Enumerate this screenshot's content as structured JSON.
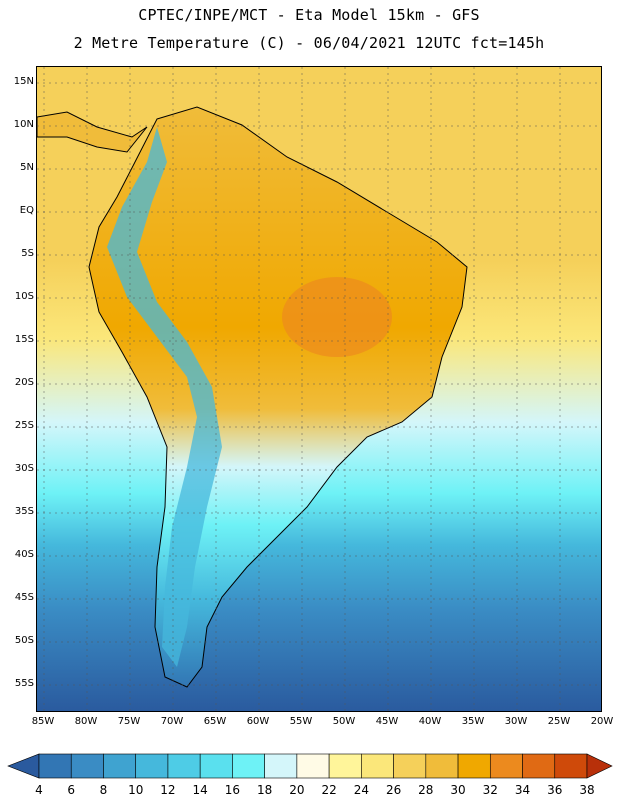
{
  "header": {
    "line1": "CPTEC/INPE/MCT -  Eta Model 15km - GFS",
    "line2": "2 Metre Temperature (C) - 06/04/2021 12UTC fct=145h"
  },
  "map": {
    "lat_labels": [
      "15N",
      "10N",
      "5N",
      "EQ",
      "5S",
      "10S",
      "15S",
      "20S",
      "25S",
      "30S",
      "35S",
      "40S",
      "45S",
      "50S",
      "55S"
    ],
    "lon_labels": [
      "85W",
      "80W",
      "75W",
      "70W",
      "65W",
      "60W",
      "55W",
      "50W",
      "45W",
      "40W",
      "35W",
      "30W",
      "25W",
      "20W"
    ]
  },
  "legend": {
    "labels": [
      "4",
      "6",
      "8",
      "10",
      "12",
      "14",
      "16",
      "18",
      "20",
      "22",
      "24",
      "26",
      "28",
      "30",
      "32",
      "34",
      "36",
      "38"
    ],
    "colors": [
      "#2a5a9e",
      "#3276b4",
      "#3a8cc4",
      "#3fa3d0",
      "#45b8dc",
      "#4ecce6",
      "#5ae0ee",
      "#6ef2f6",
      "#d4f6fa",
      "#fffbe6",
      "#fff59a",
      "#fbe77a",
      "#f5d05a",
      "#f0bc3a",
      "#f0a800",
      "#ec8a1e",
      "#e06a14",
      "#cf4a0a",
      "#b8300a"
    ]
  }
}
